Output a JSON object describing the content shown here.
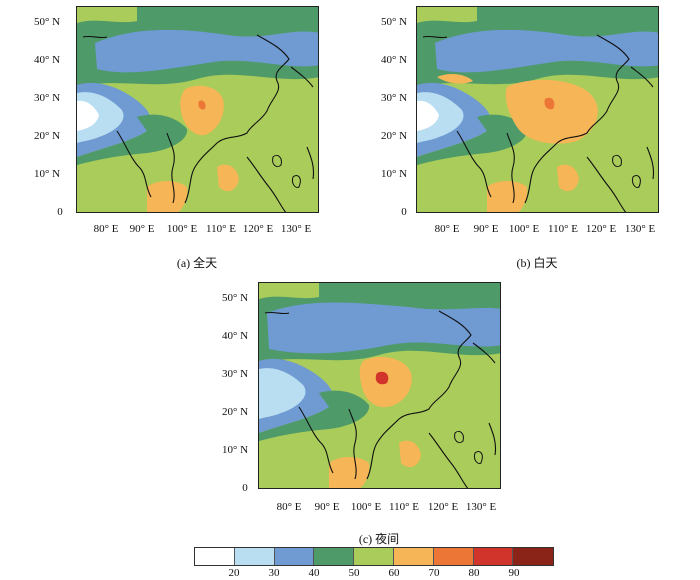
{
  "panels": [
    {
      "id": "a",
      "caption": "(a) 全天",
      "lat_ticks": [
        "50° N",
        "40° N",
        "30° N",
        "20° N",
        "10° N",
        "0"
      ],
      "lon_ticks": [
        "80° E",
        "90° E",
        "100° E",
        "110° E",
        "120° E",
        "130° E"
      ]
    },
    {
      "id": "b",
      "caption": "(b) 白天",
      "lat_ticks": [
        "50° N",
        "40° N",
        "30° N",
        "20° N",
        "10° N",
        "0"
      ],
      "lon_ticks": [
        "80° E",
        "90° E",
        "100° E",
        "110° E",
        "120° E",
        "130° E"
      ]
    },
    {
      "id": "c",
      "caption": "(c) 夜间",
      "lat_ticks": [
        "50° N",
        "40° N",
        "30° N",
        "20° N",
        "10° N",
        "0"
      ],
      "lon_ticks": [
        "80° E",
        "90° E",
        "100° E",
        "110° E",
        "120° E",
        "130° E"
      ]
    }
  ],
  "colorbar": {
    "labels": [
      "20",
      "30",
      "40",
      "50",
      "60",
      "70",
      "80",
      "90"
    ],
    "colors": [
      "#ffffff",
      "#b9def2",
      "#6f9ad2",
      "#4e9a68",
      "#a9cc5a",
      "#f6b556",
      "#ec7636",
      "#d1342a",
      "#8a2318"
    ]
  },
  "map_colors": {
    "c20": "#ffffff",
    "c30": "#b9def2",
    "c40": "#6f9ad2",
    "c50": "#4e9a68",
    "c60": "#a9cc5a",
    "c70": "#f6b556",
    "c80": "#ec7636",
    "c90": "#d1342a"
  }
}
